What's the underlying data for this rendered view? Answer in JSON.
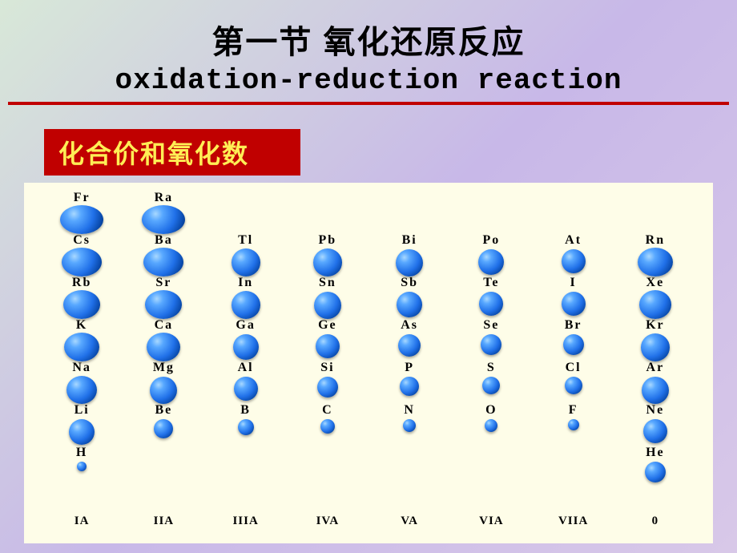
{
  "title": {
    "cn": "第一节 氧化还原反应",
    "en": "oxidation-reduction reaction"
  },
  "subtitle": "化合价和氧化数",
  "colors": {
    "accent_red": "#c00000",
    "subtitle_text": "#ffee55",
    "panel_bg": "#fefde8"
  },
  "groups": [
    "IA",
    "IIA",
    "IIIA",
    "IVA",
    "VA",
    "VIA",
    "VIIA",
    "0"
  ],
  "periodic": {
    "rows": [
      [
        {
          "sym": "Fr",
          "size": 54
        },
        {
          "sym": "Ra",
          "size": 54
        },
        null,
        null,
        null,
        null,
        null,
        null
      ],
      [
        {
          "sym": "Cs",
          "size": 50
        },
        {
          "sym": "Ba",
          "size": 50
        },
        {
          "sym": "Tl",
          "size": 36
        },
        {
          "sym": "Pb",
          "size": 36
        },
        {
          "sym": "Bi",
          "size": 34
        },
        {
          "sym": "Po",
          "size": 32
        },
        {
          "sym": "At",
          "size": 30
        },
        {
          "sym": "Rn",
          "size": 44
        }
      ],
      [
        {
          "sym": "Rb",
          "size": 46
        },
        {
          "sym": "Sr",
          "size": 46
        },
        {
          "sym": "In",
          "size": 36
        },
        {
          "sym": "Sn",
          "size": 34
        },
        {
          "sym": "Sb",
          "size": 32
        },
        {
          "sym": "Te",
          "size": 30
        },
        {
          "sym": "I",
          "size": 30
        },
        {
          "sym": "Xe",
          "size": 40
        }
      ],
      [
        {
          "sym": "K",
          "size": 44
        },
        {
          "sym": "Ca",
          "size": 42
        },
        {
          "sym": "Ga",
          "size": 32
        },
        {
          "sym": "Ge",
          "size": 30
        },
        {
          "sym": "As",
          "size": 28
        },
        {
          "sym": "Se",
          "size": 26
        },
        {
          "sym": "Br",
          "size": 26
        },
        {
          "sym": "Kr",
          "size": 36
        }
      ],
      [
        {
          "sym": "Na",
          "size": 38
        },
        {
          "sym": "Mg",
          "size": 34
        },
        {
          "sym": "Al",
          "size": 30
        },
        {
          "sym": "Si",
          "size": 26
        },
        {
          "sym": "P",
          "size": 24
        },
        {
          "sym": "S",
          "size": 22
        },
        {
          "sym": "Cl",
          "size": 22
        },
        {
          "sym": "Ar",
          "size": 34
        }
      ],
      [
        {
          "sym": "Li",
          "size": 32
        },
        {
          "sym": "Be",
          "size": 24
        },
        {
          "sym": "B",
          "size": 20
        },
        {
          "sym": "C",
          "size": 18
        },
        {
          "sym": "N",
          "size": 16
        },
        {
          "sym": "O",
          "size": 16
        },
        {
          "sym": "F",
          "size": 14
        },
        {
          "sym": "Ne",
          "size": 30
        }
      ],
      [
        {
          "sym": "H",
          "size": 12
        },
        null,
        null,
        null,
        null,
        null,
        null,
        {
          "sym": "He",
          "size": 26
        }
      ]
    ]
  }
}
